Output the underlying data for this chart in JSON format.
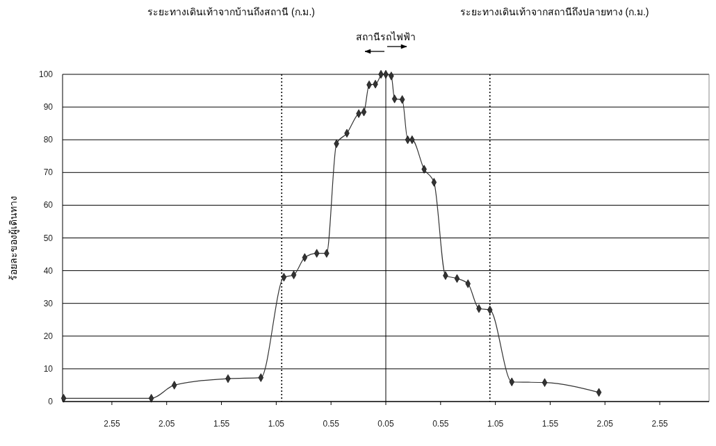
{
  "chart_data": [
    {
      "type": "line",
      "ylabel": "ร้อยละของผู้เดินทาง",
      "annotations": [
        "ระยะทางเดินเท้าจากบ้านถึงสถานี (ก.ม.)",
        "สถานีรถไฟฟ้า"
      ],
      "x": [
        2.99,
        2.19,
        1.98,
        1.49,
        1.19,
        0.98,
        0.89,
        0.79,
        0.68,
        0.59,
        0.5,
        0.405,
        0.297,
        0.25,
        0.202,
        0.145,
        0.094
      ],
      "series": [
        {
          "color": "#333333",
          "values": [
            1,
            1,
            5,
            7,
            7.3,
            38,
            38.7,
            44,
            45.3,
            45.3,
            78.8,
            82,
            88,
            88.5,
            96.8,
            97,
            100
          ]
        }
      ],
      "xlim": [
        3.0,
        0.05
      ],
      "xticks": [
        2.55,
        2.05,
        1.55,
        1.05,
        0.55,
        0.05
      ],
      "ylim": [
        0,
        100
      ],
      "yticks": [
        0,
        10,
        20,
        30,
        40,
        50,
        60,
        70,
        80,
        90,
        100
      ],
      "grid": "y",
      "marker": "diamond",
      "line_style": "solid",
      "ref_lines": [
        {
          "axis": "x",
          "value": 1.0,
          "line_style": "dotted"
        }
      ]
    },
    {
      "type": "line",
      "annotations": [
        "ระยะทางเดินเท้าจากสถานีถึงปลายทาง (ก.ม.)"
      ],
      "x": [
        0.05,
        0.1,
        0.13,
        0.2,
        0.25,
        0.29,
        0.4,
        0.49,
        0.595,
        0.7,
        0.8,
        0.9,
        1.0,
        1.2,
        1.5,
        1.995
      ],
      "series": [
        {
          "color": "#333333",
          "values": [
            100,
            99.5,
            92.5,
            92.3,
            80,
            80,
            71,
            67,
            38.5,
            37.6,
            36,
            28.4,
            28,
            6,
            5.8,
            2.8
          ]
        }
      ],
      "xlim": [
        0.05,
        3.0
      ],
      "xticks": [
        0.55,
        1.05,
        1.55,
        2.05,
        2.55
      ],
      "ylim": [
        0,
        100
      ],
      "yticks": [
        0,
        10,
        20,
        30,
        40,
        50,
        60,
        70,
        80,
        90,
        100
      ],
      "tick_labels": "x",
      "grid": "y",
      "marker": "diamond",
      "line_style": "solid",
      "ref_lines": [
        {
          "axis": "x",
          "value": 1.0,
          "line_style": "dotted"
        }
      ]
    }
  ]
}
